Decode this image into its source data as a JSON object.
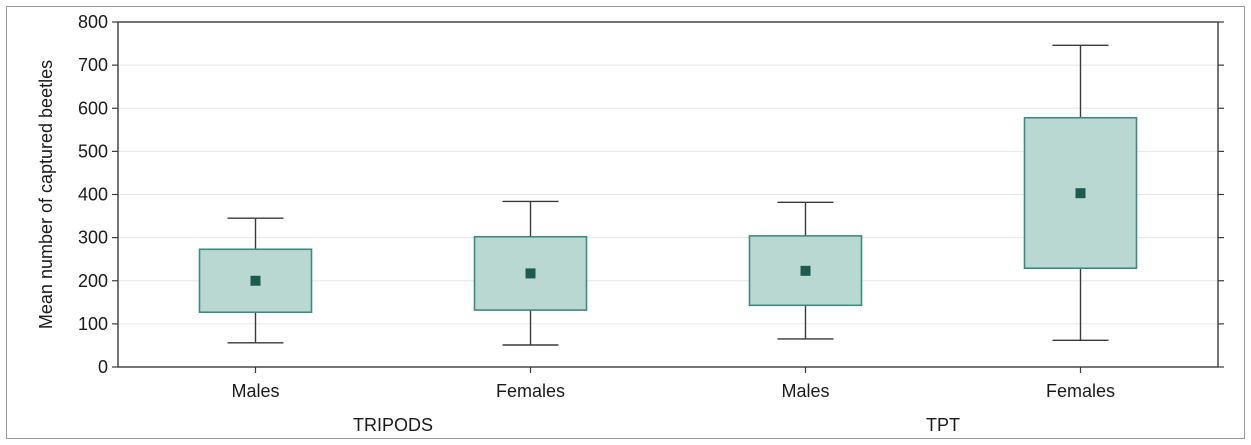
{
  "chart_data": {
    "type": "box",
    "ylabel": "Mean number of captured beetles",
    "xlabel": "",
    "ylim": [
      0,
      800
    ],
    "yticks": [
      0,
      100,
      200,
      300,
      400,
      500,
      600,
      700,
      800
    ],
    "categories": [
      "Males",
      "Females",
      "Males",
      "Females"
    ],
    "groups": [
      {
        "label": "TRIPODS",
        "categories": [
          0,
          1
        ]
      },
      {
        "label": "TPT",
        "categories": [
          2,
          3
        ]
      }
    ],
    "series": [
      {
        "boxes": [
          {
            "category": "Males",
            "group": "TRIPODS",
            "mean": 200,
            "box_low": 127,
            "box_high": 273,
            "whisker_low": 56,
            "whisker_high": 345
          },
          {
            "category": "Females",
            "group": "TRIPODS",
            "mean": 217,
            "box_low": 132,
            "box_high": 302,
            "whisker_low": 51,
            "whisker_high": 384
          },
          {
            "category": "Males",
            "group": "TPT",
            "mean": 223,
            "box_low": 143,
            "box_high": 304,
            "whisker_low": 65,
            "whisker_high": 382
          },
          {
            "category": "Females",
            "group": "TPT",
            "mean": 403,
            "box_low": 229,
            "box_high": 578,
            "whisker_low": 62,
            "whisker_high": 746
          }
        ]
      }
    ],
    "grid": true,
    "colors": {
      "box_fill": "#b9d8d2",
      "box_stroke": "#3f8a80",
      "mean_marker": "#1f5a4e",
      "whisker": "#3a3a3a",
      "grid": "#e6e6e6"
    }
  }
}
